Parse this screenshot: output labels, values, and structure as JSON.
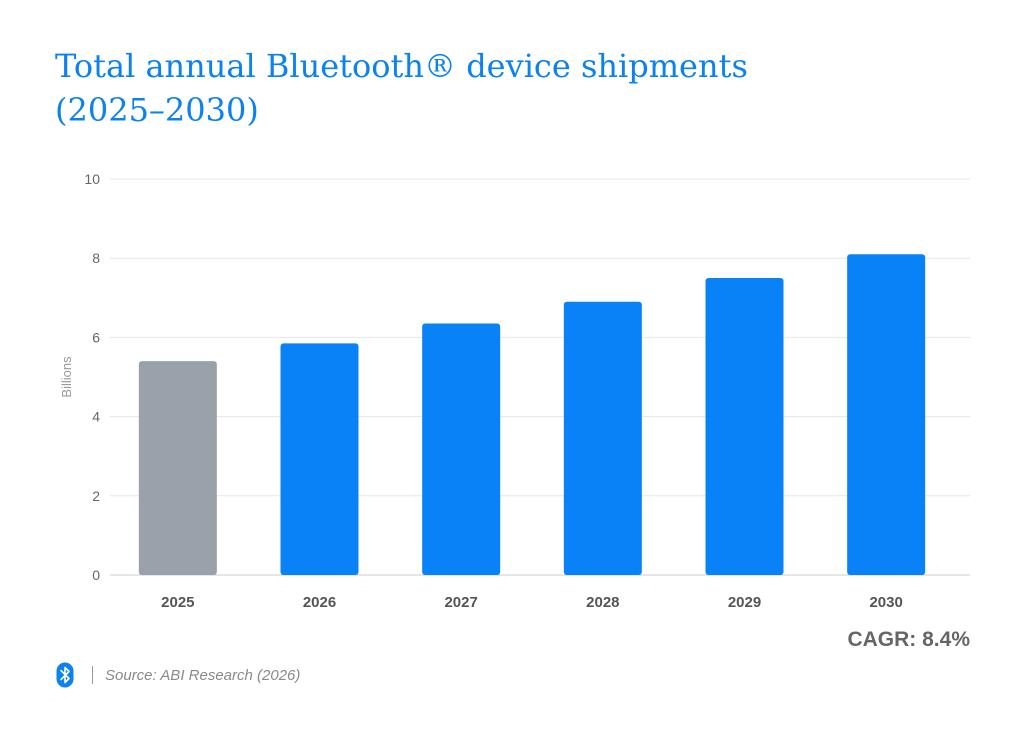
{
  "title_lines": [
    "Total annual Bluetooth® device shipments",
    "(2025–2030)"
  ],
  "cagr": "CAGR: 8.4%",
  "source": "Source: ABI Research (2026)",
  "logo": {
    "name": "bluetooth-logo",
    "color": "#0b82f0"
  },
  "colors": {
    "title": "#0b82f0",
    "bar_primary": "#0a82f7",
    "bar_muted": "#9aa1aa"
  },
  "chart_data": {
    "type": "bar",
    "categories": [
      "2025",
      "2026",
      "2027",
      "2028",
      "2029",
      "2030"
    ],
    "values": [
      5.4,
      5.85,
      6.35,
      6.9,
      7.5,
      8.1
    ],
    "bar_colors": [
      "#9aa1aa",
      "#0a82f7",
      "#0a82f7",
      "#0a82f7",
      "#0a82f7",
      "#0a82f7"
    ],
    "ylabel": "Billions",
    "xlabel": "",
    "ylim": [
      0,
      10
    ],
    "yticks": [
      0,
      2,
      4,
      6,
      8,
      10
    ],
    "grid": true,
    "legend": "none"
  }
}
